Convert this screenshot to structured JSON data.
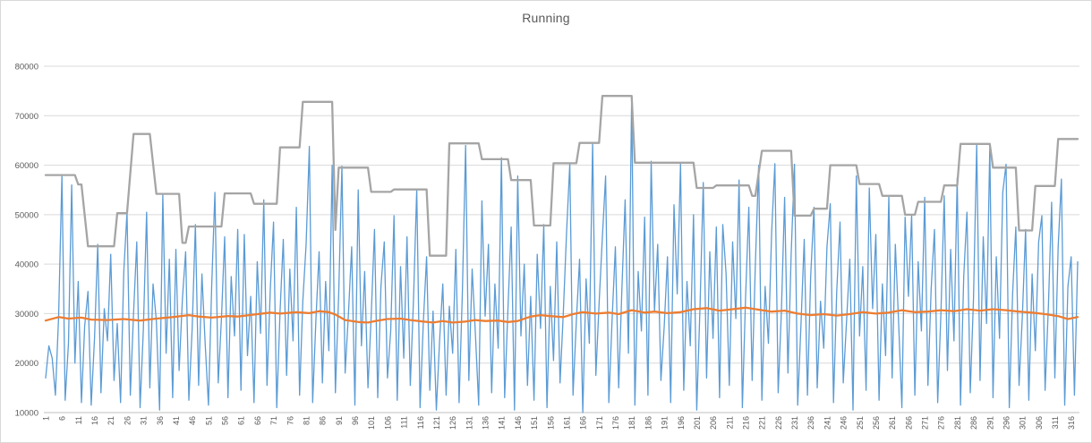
{
  "chart_data": {
    "type": "line",
    "title": "Running",
    "xlabel": "",
    "ylabel": "",
    "ylim": [
      10000,
      80000
    ],
    "y_ticks": [
      10000,
      20000,
      30000,
      40000,
      50000,
      60000,
      70000,
      80000
    ],
    "x_range": [
      1,
      318
    ],
    "x_tick_labels": [
      1,
      6,
      11,
      16,
      21,
      26,
      31,
      36,
      41,
      46,
      51,
      56,
      61,
      66,
      71,
      76,
      81,
      86,
      91,
      96,
      101,
      106,
      111,
      116,
      121,
      126,
      131,
      136,
      141,
      146,
      151,
      156,
      161,
      166,
      171,
      176,
      181,
      186,
      191,
      196,
      201,
      206,
      211,
      216,
      221,
      226,
      231,
      236,
      241,
      246,
      251,
      256,
      261,
      266,
      271,
      276,
      281,
      286,
      291,
      296,
      301,
      306,
      311,
      316
    ],
    "grid": "horizontal",
    "legend": "none",
    "colors": {
      "series1": "#5B9BD5",
      "series2": "#ED7D31",
      "series3": "#A5A5A5",
      "gridline": "#D9D9D9",
      "axis_text": "#595959"
    },
    "series": [
      {
        "name": "series-1",
        "style": "jagged-line",
        "color": "#5B9BD5",
        "values": [
          17000,
          23500,
          21000,
          13500,
          29500,
          58000,
          12500,
          24000,
          56000,
          20000,
          36500,
          12000,
          27500,
          34500,
          11500,
          25000,
          44000,
          14000,
          31000,
          24500,
          42000,
          16500,
          28000,
          12000,
          38500,
          50500,
          13500,
          30000,
          44500,
          11000,
          26500,
          50500,
          15000,
          36000,
          28500,
          10500,
          54000,
          22000,
          41000,
          13000,
          43000,
          18500,
          33000,
          42500,
          12500,
          27000,
          48000,
          15500,
          38000,
          24000,
          11500,
          35500,
          54500,
          16000,
          29000,
          45500,
          13000,
          37500,
          25500,
          47000,
          14500,
          46000,
          21500,
          33500,
          12000,
          40500,
          26000,
          53000,
          15500,
          35000,
          48500,
          11000,
          30500,
          45000,
          17500,
          39000,
          24500,
          51500,
          13500,
          32500,
          44000,
          63800,
          12000,
          28500,
          42500,
          16000,
          36500,
          22500,
          60000,
          14000,
          34000,
          59800,
          18000,
          30000,
          43500,
          11500,
          55000,
          23500,
          38500,
          15000,
          29500,
          47000,
          13000,
          35500,
          44500,
          17000,
          26500,
          49800,
          12500,
          39500,
          21000,
          45500,
          15500,
          33000,
          55200,
          11000,
          28000,
          41500,
          14500,
          30500,
          10500,
          24500,
          36000,
          13500,
          31500,
          22000,
          43000,
          12000,
          34500,
          64000,
          16500,
          39000,
          26000,
          11500,
          52800,
          29500,
          44000,
          14000,
          36000,
          23000,
          61500,
          13000,
          31000,
          47500,
          10500,
          57800,
          25500,
          40000,
          15500,
          33500,
          12500,
          42000,
          27000,
          48000,
          11000,
          35500,
          20500,
          44500,
          16000,
          30000,
          46500,
          60300,
          13500,
          28500,
          41000,
          10000,
          37000,
          24000,
          64500,
          17500,
          32000,
          45500,
          57800,
          12000,
          29000,
          43500,
          15000,
          35000,
          53000,
          22000,
          73800,
          11500,
          38500,
          26500,
          49500,
          13500,
          60800,
          30500,
          44000,
          16500,
          27500,
          41500,
          12000,
          52000,
          34000,
          60300,
          14500,
          36500,
          23500,
          50000,
          10500,
          31500,
          56500,
          17000,
          42500,
          25000,
          47500,
          13000,
          48000,
          38000,
          15500,
          44500,
          29000,
          57000,
          11000,
          33500,
          51500,
          16500,
          40000,
          60000,
          12500,
          35500,
          24000,
          46500,
          60300,
          14000,
          30500,
          53500,
          18000,
          42000,
          60200,
          11500,
          27500,
          45000,
          13500,
          37500,
          51500,
          15000,
          32500,
          23000,
          43500,
          52200,
          12000,
          34500,
          48500,
          16000,
          28500,
          41000,
          10500,
          57800,
          25500,
          39500,
          14500,
          55400,
          31000,
          46000,
          12500,
          36000,
          21500,
          53700,
          17000,
          44000,
          28000,
          11000,
          49500,
          33500,
          50000,
          13500,
          40500,
          26500,
          53500,
          15500,
          35000,
          47000,
          12000,
          30000,
          53800,
          18500,
          43000,
          24500,
          57400,
          11500,
          37500,
          50500,
          14000,
          33000,
          64200,
          16500,
          45500,
          28000,
          63500,
          13000,
          41500,
          25000,
          54500,
          60200,
          11000,
          34000,
          47500,
          15500,
          29500,
          47000,
          12500,
          38000,
          22500,
          44500,
          49800,
          14500,
          31500,
          52500,
          17000,
          43500,
          57200,
          11500,
          35500,
          41500,
          13500,
          40500
        ]
      },
      {
        "name": "series-2",
        "style": "smooth-average-line",
        "color": "#ED7D31",
        "anchors": [
          [
            1,
            28600
          ],
          [
            5,
            29300
          ],
          [
            8,
            29000
          ],
          [
            12,
            29200
          ],
          [
            15,
            28800
          ],
          [
            20,
            28700
          ],
          [
            25,
            28900
          ],
          [
            30,
            28600
          ],
          [
            35,
            29000
          ],
          [
            40,
            29300
          ],
          [
            45,
            29700
          ],
          [
            48,
            29400
          ],
          [
            52,
            29200
          ],
          [
            57,
            29500
          ],
          [
            60,
            29400
          ],
          [
            65,
            29800
          ],
          [
            70,
            30200
          ],
          [
            73,
            30000
          ],
          [
            78,
            30300
          ],
          [
            82,
            30100
          ],
          [
            85,
            30500
          ],
          [
            88,
            30300
          ],
          [
            90,
            29800
          ],
          [
            93,
            28700
          ],
          [
            97,
            28300
          ],
          [
            100,
            28200
          ],
          [
            103,
            28600
          ],
          [
            106,
            28900
          ],
          [
            110,
            29000
          ],
          [
            113,
            28700
          ],
          [
            117,
            28400
          ],
          [
            120,
            28200
          ],
          [
            123,
            28500
          ],
          [
            126,
            28200
          ],
          [
            130,
            28400
          ],
          [
            133,
            28700
          ],
          [
            136,
            28500
          ],
          [
            140,
            28600
          ],
          [
            143,
            28300
          ],
          [
            146,
            28500
          ],
          [
            150,
            29400
          ],
          [
            153,
            29700
          ],
          [
            156,
            29500
          ],
          [
            160,
            29300
          ],
          [
            163,
            29900
          ],
          [
            166,
            30300
          ],
          [
            170,
            30000
          ],
          [
            174,
            30200
          ],
          [
            177,
            29900
          ],
          [
            181,
            30700
          ],
          [
            185,
            30200
          ],
          [
            188,
            30400
          ],
          [
            192,
            30100
          ],
          [
            196,
            30300
          ],
          [
            200,
            30900
          ],
          [
            204,
            31100
          ],
          [
            208,
            30600
          ],
          [
            212,
            30900
          ],
          [
            216,
            31200
          ],
          [
            220,
            30800
          ],
          [
            224,
            30400
          ],
          [
            228,
            30600
          ],
          [
            232,
            30000
          ],
          [
            236,
            29700
          ],
          [
            240,
            29900
          ],
          [
            244,
            29600
          ],
          [
            248,
            29900
          ],
          [
            252,
            30300
          ],
          [
            256,
            30000
          ],
          [
            260,
            30200
          ],
          [
            264,
            30700
          ],
          [
            268,
            30300
          ],
          [
            272,
            30400
          ],
          [
            276,
            30700
          ],
          [
            280,
            30500
          ],
          [
            284,
            30900
          ],
          [
            288,
            30600
          ],
          [
            292,
            30900
          ],
          [
            296,
            30700
          ],
          [
            300,
            30400
          ],
          [
            304,
            30200
          ],
          [
            308,
            29900
          ],
          [
            312,
            29500
          ],
          [
            315,
            28900
          ],
          [
            318,
            29300
          ]
        ]
      },
      {
        "name": "series-3",
        "style": "stepped-line",
        "color": "#A5A5A5",
        "segments": [
          [
            1,
            10,
            58000
          ],
          [
            11,
            12,
            56100
          ],
          [
            14,
            22,
            43600
          ],
          [
            23,
            26,
            50300
          ],
          [
            28,
            33,
            66300
          ],
          [
            35,
            42,
            54200
          ],
          [
            43,
            44,
            44300
          ],
          [
            45,
            55,
            47600
          ],
          [
            56,
            64,
            54300
          ],
          [
            65,
            72,
            52200
          ],
          [
            73,
            79,
            63600
          ],
          [
            80,
            89,
            72800
          ],
          [
            90,
            90,
            46900
          ],
          [
            91,
            100,
            59500
          ],
          [
            101,
            107,
            54600
          ],
          [
            108,
            118,
            55100
          ],
          [
            119,
            124,
            41700
          ],
          [
            125,
            134,
            64400
          ],
          [
            135,
            143,
            61200
          ],
          [
            144,
            150,
            57000
          ],
          [
            151,
            156,
            47800
          ],
          [
            157,
            164,
            60400
          ],
          [
            165,
            171,
            64500
          ],
          [
            172,
            181,
            74000
          ],
          [
            182,
            200,
            60500
          ],
          [
            201,
            206,
            55400
          ],
          [
            207,
            217,
            55900
          ],
          [
            218,
            219,
            53800
          ],
          [
            221,
            230,
            62900
          ],
          [
            231,
            236,
            49800
          ],
          [
            237,
            241,
            51200
          ],
          [
            242,
            250,
            60000
          ],
          [
            251,
            257,
            56200
          ],
          [
            258,
            264,
            53800
          ],
          [
            265,
            268,
            50000
          ],
          [
            269,
            276,
            52600
          ],
          [
            277,
            281,
            55900
          ],
          [
            282,
            291,
            64300
          ],
          [
            292,
            299,
            59500
          ],
          [
            300,
            304,
            46800
          ],
          [
            305,
            311,
            55800
          ],
          [
            312,
            318,
            65300
          ]
        ]
      }
    ]
  }
}
